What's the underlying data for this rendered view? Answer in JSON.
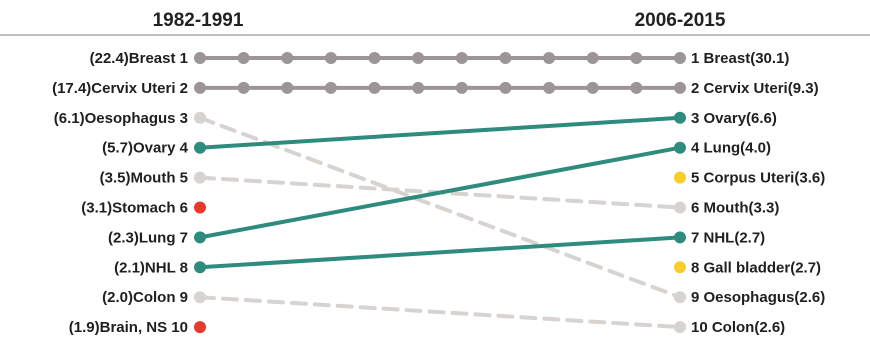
{
  "chart_data": {
    "type": "slope",
    "left_header": "1982-1991",
    "right_header": "2006-2015",
    "left": [
      {
        "rank": 1,
        "site": "Breast",
        "value": "22.4",
        "label": "(22.4)Breast 1"
      },
      {
        "rank": 2,
        "site": "Cervix Uteri",
        "value": "17.4",
        "label": "(17.4)Cervix Uteri 2"
      },
      {
        "rank": 3,
        "site": "Oesophagus",
        "value": "6.1",
        "label": "(6.1)Oesophagus 3"
      },
      {
        "rank": 4,
        "site": "Ovary",
        "value": "5.7",
        "label": "(5.7)Ovary 4"
      },
      {
        "rank": 5,
        "site": "Mouth",
        "value": "3.5",
        "label": "(3.5)Mouth 5"
      },
      {
        "rank": 6,
        "site": "Stomach",
        "value": "3.1",
        "label": "(3.1)Stomach 6"
      },
      {
        "rank": 7,
        "site": "Lung",
        "value": "2.3",
        "label": "(2.3)Lung 7"
      },
      {
        "rank": 8,
        "site": "NHL",
        "value": "2.1",
        "label": "(2.1)NHL 8"
      },
      {
        "rank": 9,
        "site": "Colon",
        "value": "2.0",
        "label": "(2.0)Colon 9"
      },
      {
        "rank": 10,
        "site": "Brain, NS",
        "value": "1.9",
        "label": "(1.9)Brain, NS 10"
      }
    ],
    "right": [
      {
        "rank": 1,
        "site": "Breast",
        "value": "30.1",
        "label": "1 Breast(30.1)"
      },
      {
        "rank": 2,
        "site": "Cervix Uteri",
        "value": "9.3",
        "label": "2 Cervix Uteri(9.3)"
      },
      {
        "rank": 3,
        "site": "Ovary",
        "value": "6.6",
        "label": "3 Ovary(6.6)"
      },
      {
        "rank": 4,
        "site": "Lung",
        "value": "4.0",
        "label": "4 Lung(4.0)"
      },
      {
        "rank": 5,
        "site": "Corpus Uteri",
        "value": "3.6",
        "label": "5 Corpus Uteri(3.6)"
      },
      {
        "rank": 6,
        "site": "Mouth",
        "value": "3.3",
        "label": "6 Mouth(3.3)"
      },
      {
        "rank": 7,
        "site": "NHL",
        "value": "2.7",
        "label": "7 NHL(2.7)"
      },
      {
        "rank": 8,
        "site": "Gall bladder",
        "value": "2.7",
        "label": "8 Gall bladder(2.7)"
      },
      {
        "rank": 9,
        "site": "Oesophagus",
        "value": "2.6",
        "label": "9 Oesophagus(2.6)"
      },
      {
        "rank": 10,
        "site": "Colon",
        "value": "2.6",
        "label": "10 Colon(2.6)"
      }
    ],
    "links": [
      {
        "site": "Breast",
        "from_rank": 1,
        "to_rank": 1,
        "status": "same"
      },
      {
        "site": "Cervix Uteri",
        "from_rank": 2,
        "to_rank": 2,
        "status": "same"
      },
      {
        "site": "Oesophagus",
        "from_rank": 3,
        "to_rank": 9,
        "status": "down"
      },
      {
        "site": "Ovary",
        "from_rank": 4,
        "to_rank": 3,
        "status": "up"
      },
      {
        "site": "Mouth",
        "from_rank": 5,
        "to_rank": 6,
        "status": "down"
      },
      {
        "site": "Lung",
        "from_rank": 7,
        "to_rank": 4,
        "status": "up"
      },
      {
        "site": "NHL",
        "from_rank": 8,
        "to_rank": 7,
        "status": "up"
      },
      {
        "site": "Colon",
        "from_rank": 9,
        "to_rank": 10,
        "status": "down"
      }
    ],
    "dropped_out": [
      "Stomach",
      "Brain, NS"
    ],
    "new_entries": [
      "Corpus Uteri",
      "Gall bladder"
    ],
    "colors": {
      "same": "#9b9598",
      "up": "#2e8b7d",
      "down": "#d6d3d1",
      "dropped_out": "#e53a2f",
      "new_entry": "#f7cd2e",
      "text": "#1f1f1f"
    }
  }
}
